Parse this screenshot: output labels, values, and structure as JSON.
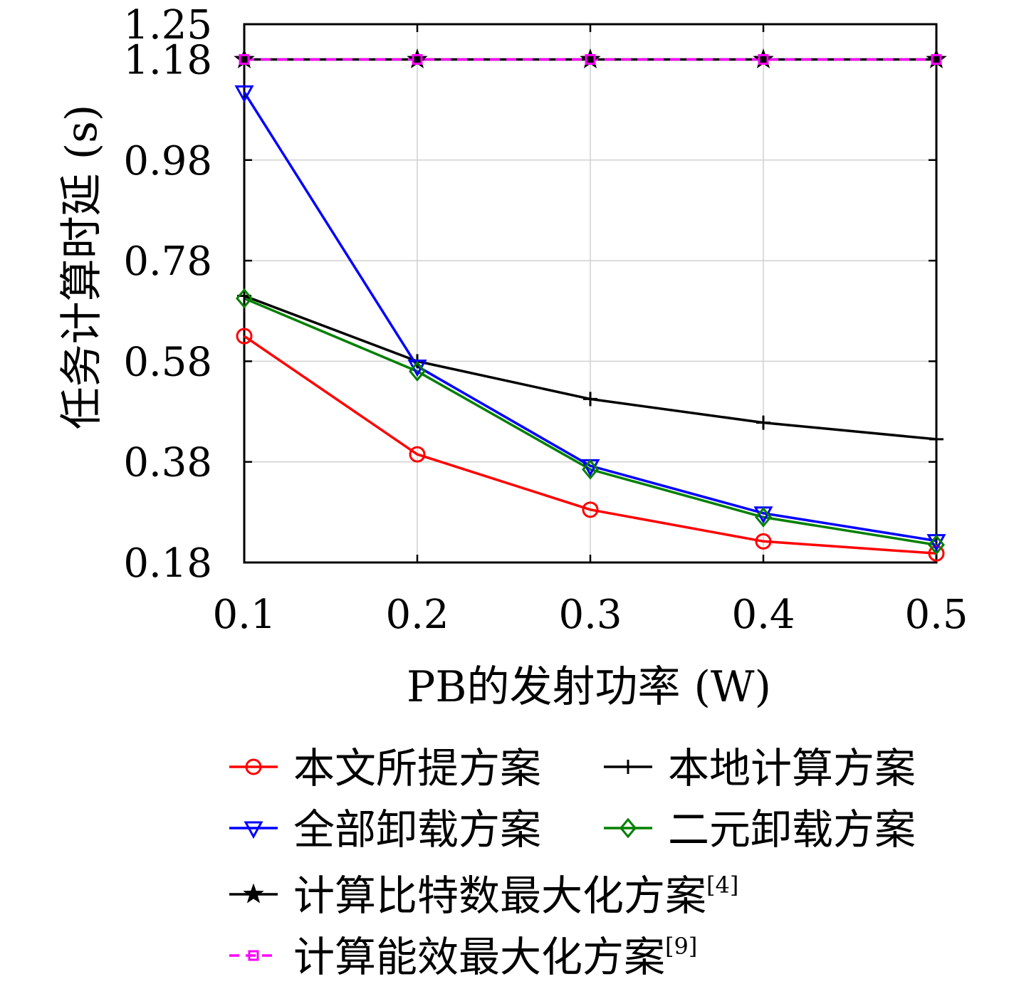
{
  "chart_data": {
    "type": "line",
    "xlabel": "PB的发射功率 (W)",
    "ylabel": "任务计算时延 (s)",
    "x": [
      0.1,
      0.2,
      0.3,
      0.4,
      0.5
    ],
    "x_ticks": [
      "0.1",
      "0.2",
      "0.3",
      "0.4",
      "0.5"
    ],
    "y_ticks": [
      "0.18",
      "0.38",
      "0.58",
      "0.78",
      "0.98",
      "1.18",
      "1.25"
    ],
    "xlim": [
      0.1,
      0.5
    ],
    "ylim": [
      0.18,
      1.25
    ],
    "grid": true,
    "legend_position": "bottom",
    "series": [
      {
        "name": "本文所提方案",
        "name_sup": "",
        "color": "#ff0000",
        "marker": "circle",
        "dash": "solid",
        "values": [
          0.63,
          0.395,
          0.285,
          0.222,
          0.198
        ]
      },
      {
        "name": "本地计算方案",
        "name_sup": "",
        "color": "#000000",
        "marker": "plus",
        "dash": "solid",
        "values": [
          0.71,
          0.58,
          0.505,
          0.458,
          0.425
        ]
      },
      {
        "name": "全部卸载方案",
        "name_sup": "",
        "color": "#0000ff",
        "marker": "triangle-down",
        "dash": "solid",
        "values": [
          1.115,
          0.57,
          0.372,
          0.278,
          0.223
        ]
      },
      {
        "name": "二元卸载方案",
        "name_sup": "",
        "color": "#008000",
        "marker": "diamond",
        "dash": "solid",
        "values": [
          0.705,
          0.56,
          0.365,
          0.27,
          0.215
        ]
      },
      {
        "name": "计算比特数最大化方案",
        "name_sup": "[4]",
        "color": "#000000",
        "marker": "star",
        "dash": "solid",
        "values": [
          1.18,
          1.18,
          1.18,
          1.18,
          1.18
        ]
      },
      {
        "name": "计算能效最大化方案",
        "name_sup": "[9]",
        "color": "#ff00ff",
        "marker": "square",
        "dash": "dashed",
        "values": [
          1.18,
          1.18,
          1.18,
          1.18,
          1.18
        ]
      }
    ]
  }
}
